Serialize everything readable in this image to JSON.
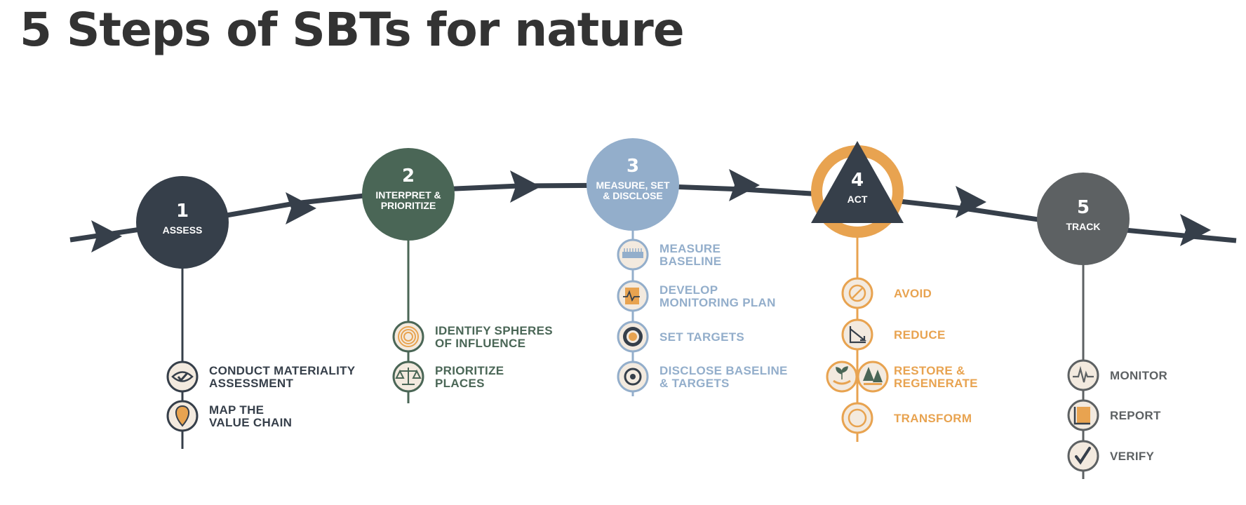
{
  "title": "5 Steps of SBTs for nature",
  "colors": {
    "assess": "#363f4a",
    "interpret": "#4a6656",
    "measure": "#93aecb",
    "act": "#e8a350",
    "track": "#5d6163",
    "curve": "#363f4a",
    "icon_bg": "#f3eadf"
  },
  "steps": [
    {
      "number": "1",
      "name_lines": [
        "ASSESS"
      ],
      "sub_steps": [
        {
          "label_lines": [
            "CONDUCT MATERIALITY",
            "ASSESSMENT"
          ],
          "icon": "eye-check-icon"
        },
        {
          "label_lines": [
            "MAP THE",
            "VALUE CHAIN"
          ],
          "icon": "map-pin-icon"
        }
      ]
    },
    {
      "number": "2",
      "name_lines": [
        "INTERPRET &",
        "PRIORITIZE"
      ],
      "sub_steps": [
        {
          "label_lines": [
            "IDENTIFY SPHERES",
            "OF INFLUENCE"
          ],
          "icon": "concentric-circles-icon"
        },
        {
          "label_lines": [
            "PRIORITIZE",
            "PLACES"
          ],
          "icon": "balance-scale-icon"
        }
      ]
    },
    {
      "number": "3",
      "name_lines": [
        "MEASURE, SET",
        "& DISCLOSE"
      ],
      "sub_steps": [
        {
          "label_lines": [
            "MEASURE",
            "BASELINE"
          ],
          "icon": "ruler-icon"
        },
        {
          "label_lines": [
            "DEVELOP",
            "MONITORING PLAN"
          ],
          "icon": "monitoring-chart-icon"
        },
        {
          "label_lines": [
            "SET TARGETS"
          ],
          "icon": "target-icon"
        },
        {
          "label_lines": [
            "DISCLOSE BASELINE",
            "& TARGETS"
          ],
          "icon": "disclose-target-icon"
        }
      ]
    },
    {
      "number": "4",
      "name_lines": [
        "ACT"
      ],
      "sub_steps": [
        {
          "label_lines": [
            "AVOID"
          ],
          "icon": "avoid-icon"
        },
        {
          "label_lines": [
            "REDUCE"
          ],
          "icon": "reduce-icon"
        },
        {
          "label_lines": [
            "RESTORE &",
            "REGENERATE"
          ],
          "icon": "restore-regenerate-icon"
        },
        {
          "label_lines": [
            "TRANSFORM"
          ],
          "icon": "transform-icon"
        }
      ]
    },
    {
      "number": "5",
      "name_lines": [
        "TRACK"
      ],
      "sub_steps": [
        {
          "label_lines": [
            "MONITOR"
          ],
          "icon": "pulse-icon"
        },
        {
          "label_lines": [
            "REPORT"
          ],
          "icon": "report-icon"
        },
        {
          "label_lines": [
            "VERIFY"
          ],
          "icon": "checkmark-icon"
        }
      ]
    }
  ]
}
